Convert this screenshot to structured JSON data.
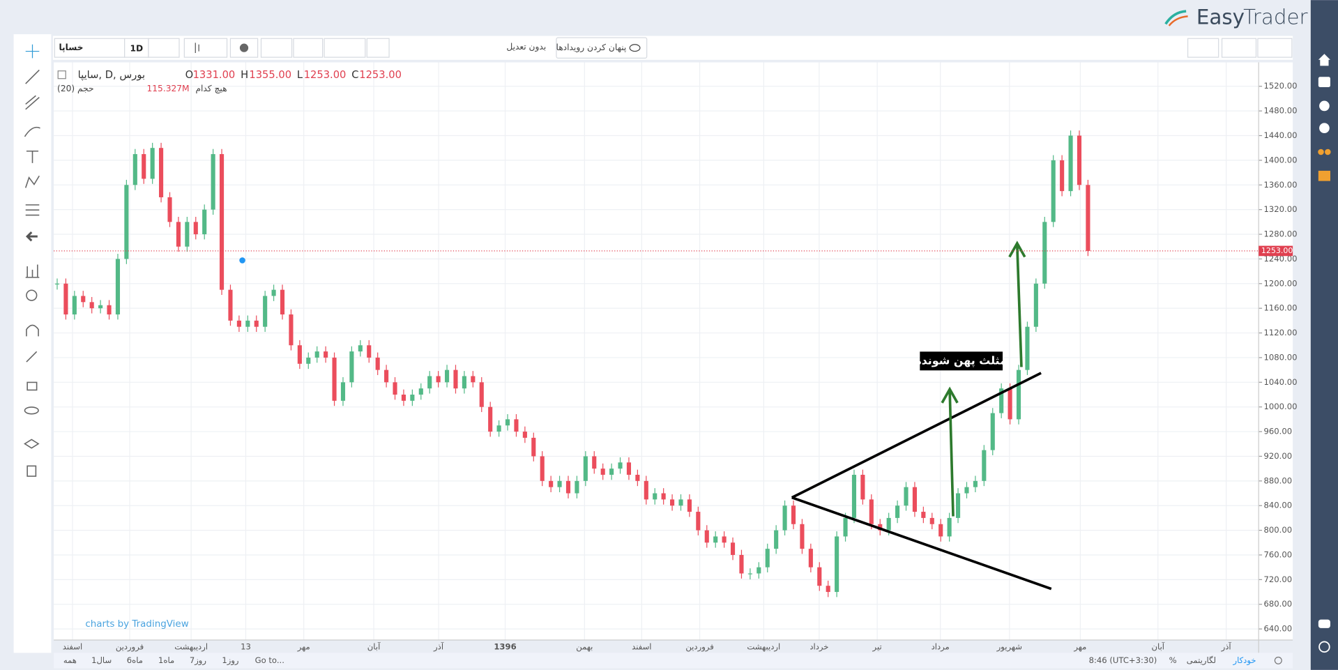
{
  "logo": {
    "a": "Easy",
    "b": "Trader"
  },
  "toolbar": {
    "symbol": "خساپا",
    "interval": "1D",
    "adjust": "بدون تعدیل",
    "hide_events": "پنهان کردن رویدادها"
  },
  "legend": {
    "name": "سایپا, D, بورس",
    "o": "O",
    "open": "1331.00",
    "h": "H",
    "high": "1355.00",
    "l": "L",
    "low": "1253.00",
    "c": "C",
    "close": "1253.00",
    "volume": "حجم (20)",
    "volume_value": "115.327M",
    "none": "هیچ کدام"
  },
  "annotation": "مثلث پهن شونده",
  "watermark": "charts by TradingView",
  "last_price": {
    "value": 1253,
    "label": "1253.00"
  },
  "ylim": [
    640,
    1520
  ],
  "yticks": [
    {
      "value": 640,
      "label": "640.00"
    },
    {
      "value": 680,
      "label": "680.00"
    },
    {
      "value": 720,
      "label": "720.00"
    },
    {
      "value": 760,
      "label": "760.00"
    },
    {
      "value": 800,
      "label": "800.00"
    },
    {
      "value": 840,
      "label": "840.00"
    },
    {
      "value": 880,
      "label": "880.00"
    },
    {
      "value": 920,
      "label": "920.00"
    },
    {
      "value": 960,
      "label": "960.00"
    },
    {
      "value": 1000,
      "label": "1000.00"
    },
    {
      "value": 1040,
      "label": "1040.00"
    },
    {
      "value": 1080,
      "label": "1080.00"
    },
    {
      "value": 1120,
      "label": "1120.00"
    },
    {
      "value": 1160,
      "label": "1160.00"
    },
    {
      "value": 1200,
      "label": "1200.00"
    },
    {
      "value": 1240,
      "label": "1240.00"
    },
    {
      "value": 1280,
      "label": "1280.00"
    },
    {
      "value": 1320,
      "label": "1320.00"
    },
    {
      "value": 1360,
      "label": "1360.00"
    },
    {
      "value": 1400,
      "label": "1400.00"
    },
    {
      "value": 1440,
      "label": "1440.00"
    },
    {
      "value": 1480,
      "label": "1480.00"
    },
    {
      "value": 1520,
      "label": "1520.00"
    }
  ],
  "time_labels": [
    "اسفند",
    "فروردین",
    "اردیبهشت",
    "13",
    "مهر",
    "آبان",
    "آذر",
    "1396",
    "بهمن",
    "اسفند",
    "فروردین",
    "اردیبهشت",
    "خرداد",
    "تیر",
    "مرداد",
    "شهریور",
    "مهر",
    "آبان",
    "آذر"
  ],
  "closes": [
    1200,
    1150,
    1180,
    1170,
    1160,
    1165,
    1150,
    1240,
    1360,
    1410,
    1370,
    1420,
    1340,
    1300,
    1260,
    1300,
    1280,
    1320,
    1410,
    1190,
    1140,
    1130,
    1140,
    1130,
    1180,
    1190,
    1150,
    1100,
    1070,
    1080,
    1090,
    1080,
    1010,
    1040,
    1090,
    1100,
    1080,
    1060,
    1040,
    1020,
    1010,
    1020,
    1030,
    1050,
    1040,
    1060,
    1030,
    1050,
    1040,
    1000,
    960,
    970,
    980,
    960,
    950,
    920,
    880,
    870,
    880,
    860,
    880,
    920,
    900,
    890,
    900,
    910,
    890,
    880,
    850,
    860,
    850,
    840,
    850,
    830,
    800,
    780,
    790,
    780,
    760,
    730,
    730,
    740,
    770,
    800,
    840,
    810,
    770,
    740,
    710,
    700,
    790,
    820,
    890,
    850,
    810,
    800,
    820,
    840,
    870,
    830,
    820,
    810,
    790,
    820,
    860,
    870,
    880,
    930,
    990,
    1030,
    980,
    1060,
    1130,
    1200,
    1300,
    1400,
    1350,
    1440,
    1360,
    1253
  ],
  "bottom": {
    "ranges": [
      "همه",
      "1سال",
      "6ماه",
      "1ماه",
      "7روز",
      "1روز"
    ],
    "goto": "Go to...",
    "time": "8:46 (UTC+3:30)",
    "percent": "%",
    "log": "لگاریتمی",
    "auto": "خودکار"
  }
}
